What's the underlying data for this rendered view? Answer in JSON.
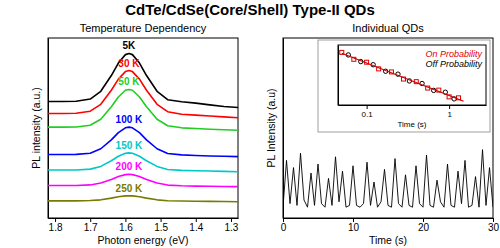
{
  "title": "CdTe/CdSe(Core/Shell) Type-II QDs",
  "chart_data": [
    {
      "type": "line",
      "title": "Temperature Dependency",
      "x_label": "Photon energy (eV)",
      "y_label": "PL intensity (a.u.)",
      "x": [
        1.82,
        1.78,
        1.74,
        1.7,
        1.67,
        1.64,
        1.62,
        1.6,
        1.59,
        1.58,
        1.56,
        1.54,
        1.51,
        1.48,
        1.44,
        1.4,
        1.36,
        1.32,
        1.28
      ],
      "xlim": [
        1.82,
        1.28
      ],
      "xticks": [
        1.8,
        1.7,
        1.6,
        1.5,
        1.4,
        1.3
      ],
      "ylim": [
        0,
        10.5
      ],
      "tick_labels": "x",
      "series": [
        {
          "name": "5K",
          "color": "#000000",
          "values": [
            6.8,
            6.8,
            6.81,
            6.94,
            7.39,
            8.31,
            9.04,
            9.53,
            9.6,
            9.53,
            9.04,
            8.31,
            7.39,
            6.9,
            6.78,
            6.7,
            6.6,
            6.5,
            6.45
          ]
        },
        {
          "name": "30 K",
          "color": "#ff0000",
          "values": [
            6.1,
            6.1,
            6.11,
            6.23,
            6.63,
            7.45,
            8.1,
            8.54,
            8.6,
            8.54,
            8.1,
            7.45,
            6.63,
            6.2,
            6.05,
            6.0,
            5.95,
            5.9,
            5.85
          ]
        },
        {
          "name": "50 K",
          "color": "#22cc22",
          "values": [
            5.3,
            5.3,
            5.31,
            5.41,
            5.76,
            6.49,
            7.06,
            7.45,
            7.5,
            7.45,
            7.06,
            6.49,
            5.76,
            5.38,
            5.26,
            5.22,
            5.18,
            5.15,
            5.12
          ]
        },
        {
          "name": "100 K",
          "color": "#0000ff",
          "values": [
            3.7,
            3.7,
            3.71,
            3.78,
            4.04,
            4.56,
            4.98,
            5.26,
            5.3,
            5.26,
            4.98,
            4.56,
            4.04,
            3.76,
            3.68,
            3.65,
            3.62,
            3.6,
            3.58
          ]
        },
        {
          "name": "150 K",
          "color": "#00c8c8",
          "values": [
            2.8,
            2.8,
            2.8,
            2.85,
            3.01,
            3.34,
            3.6,
            3.78,
            3.8,
            3.78,
            3.6,
            3.34,
            3.01,
            2.83,
            2.78,
            2.76,
            2.74,
            2.72,
            2.7
          ]
        },
        {
          "name": "200 K",
          "color": "#ff00ff",
          "values": [
            1.9,
            1.9,
            1.9,
            1.93,
            2.04,
            2.25,
            2.42,
            2.53,
            2.55,
            2.53,
            2.42,
            2.25,
            2.04,
            1.92,
            1.88,
            1.86,
            1.85,
            1.84,
            1.83
          ]
        },
        {
          "name": "250 K",
          "color": "#7a7a00",
          "values": [
            1.0,
            1.0,
            1.0,
            1.02,
            1.06,
            1.16,
            1.24,
            1.29,
            1.3,
            1.29,
            1.24,
            1.16,
            1.06,
            1.01,
            0.99,
            0.98,
            0.97,
            0.96,
            0.95
          ]
        }
      ]
    },
    {
      "type": "line",
      "title": "Individual QDs",
      "x_label": "Time (s)",
      "y_label": "PL Intensity (a.u)",
      "x": [
        0,
        0.5,
        1,
        1.5,
        2,
        2.5,
        3,
        3.5,
        4,
        4.5,
        5,
        5.5,
        6,
        6.5,
        7,
        7.5,
        8,
        8.5,
        9,
        9.5,
        10,
        10.5,
        11,
        11.5,
        12,
        12.5,
        13,
        13.5,
        14,
        14.5,
        15,
        15.5,
        16,
        16.5,
        17,
        17.5,
        18,
        18.5,
        19,
        19.5,
        20,
        20.5,
        21,
        21.5,
        22,
        22.5,
        23,
        23.5,
        24,
        24.5,
        25,
        25.5,
        26,
        26.5,
        27,
        27.5,
        28,
        28.5,
        29,
        29.5,
        30
      ],
      "xlim": [
        0,
        30
      ],
      "xticks": [
        0,
        10,
        20,
        30
      ],
      "ylim": [
        0,
        10
      ],
      "tick_labels": "x",
      "series": [
        {
          "color": "#000000",
          "values": [
            0.6,
            3.2,
            0.8,
            2.8,
            0.7,
            3.6,
            1.0,
            0.6,
            2.5,
            0.7,
            3.0,
            0.8,
            0.6,
            2.2,
            0.7,
            3.4,
            0.9,
            2.6,
            0.6,
            0.7,
            2.9,
            0.7,
            0.6,
            0.8,
            3.1,
            0.7,
            2.0,
            0.6,
            0.9,
            2.7,
            0.7,
            0.6,
            3.3,
            0.8,
            0.6,
            2.4,
            0.7,
            0.6,
            2.9,
            0.8,
            0.6,
            3.5,
            0.7,
            0.6,
            2.1,
            0.9,
            0.6,
            3.0,
            0.7,
            0.6,
            2.6,
            0.8,
            3.2,
            0.6,
            0.7,
            2.3,
            0.6,
            3.8,
            0.7,
            2.8,
            0.6
          ]
        }
      ]
    },
    {
      "type": "scatter",
      "x_label": "Time (s)",
      "log": true,
      "xlim": [
        0.045,
        2.8
      ],
      "xticks": [
        0.1,
        1
      ],
      "ylim": [
        0.015,
        1.5
      ],
      "tick_labels": "x",
      "legend": "upper right",
      "series": [
        {
          "name": "On Probability",
          "color": "#e00000",
          "marker": "square",
          "x": [
            0.05,
            0.07,
            0.1,
            0.14,
            0.2,
            0.28,
            0.4,
            0.55,
            0.75,
            1.0,
            1.3
          ],
          "values": [
            0.85,
            0.5,
            0.4,
            0.24,
            0.19,
            0.11,
            0.09,
            0.055,
            0.047,
            0.028,
            0.026
          ]
        },
        {
          "name": "Off Probability",
          "color": "#000000",
          "marker": "circle",
          "x": [
            0.06,
            0.085,
            0.12,
            0.17,
            0.24,
            0.33,
            0.47,
            0.65,
            0.9,
            1.15
          ],
          "values": [
            0.7,
            0.42,
            0.33,
            0.2,
            0.16,
            0.095,
            0.078,
            0.046,
            0.04,
            0.024
          ]
        },
        {
          "type": "line",
          "color": "#cc0000",
          "x": [
            0.05,
            1.5
          ],
          "values": [
            0.8,
            0.02
          ]
        }
      ]
    }
  ]
}
